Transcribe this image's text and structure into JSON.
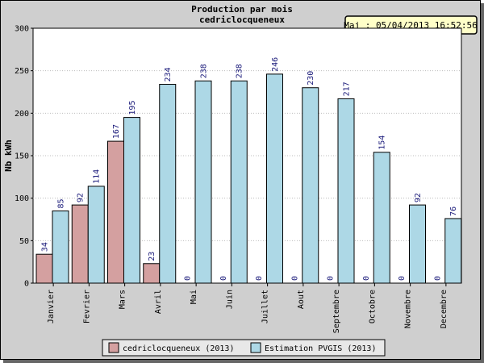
{
  "chart_data": {
    "type": "bar",
    "title": "Production par mois",
    "subtitle": "cedriclocqueneux",
    "ylabel": "Nb kWh",
    "xlabel": "",
    "ylim": [
      0,
      300
    ],
    "yticks": [
      "0",
      "50",
      "100",
      "150",
      "200",
      "250",
      "300"
    ],
    "grid": true,
    "legend_position": "bottom",
    "update_stamp": "Maj : 05/04/2013 16:52:56",
    "categories": [
      "Janvier",
      "Fevrier",
      "Mars",
      "Avril",
      "Mai",
      "Juin",
      "Juillet",
      "Aout",
      "Septembre",
      "Octobre",
      "Novembre",
      "Decembre"
    ],
    "series": [
      {
        "name": "cedriclocqueneux (2013)",
        "color": "#d4a0a0",
        "values": [
          34,
          92,
          167,
          23,
          0,
          0,
          0,
          0,
          0,
          0,
          0,
          0
        ]
      },
      {
        "name": "Estimation PVGIS (2013)",
        "color": "#add8e6",
        "values": [
          85,
          114,
          195,
          234,
          238,
          238,
          246,
          230,
          217,
          154,
          92,
          76
        ]
      }
    ]
  }
}
